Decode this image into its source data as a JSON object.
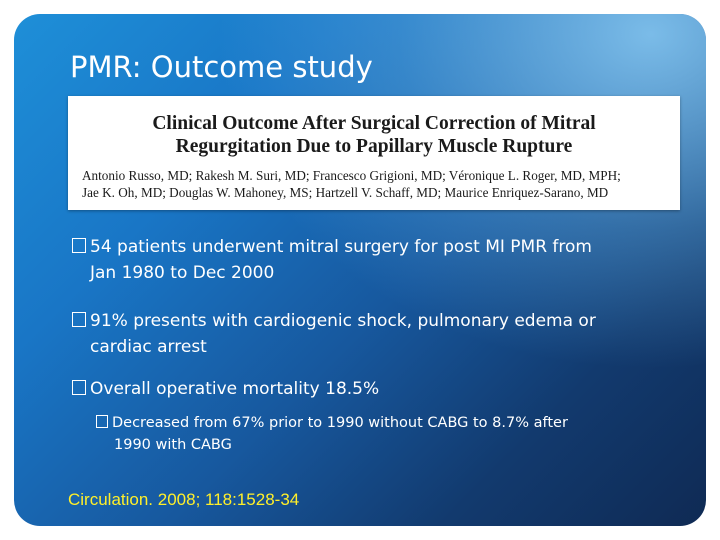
{
  "slide": {
    "title": "PMR: Outcome study",
    "paper": {
      "title_lines": [
        "Clinical Outcome After Surgical Correction of Mitral",
        "Regurgitation Due to Papillary Muscle Rupture"
      ],
      "author_lines": [
        "Antonio Russo, MD; Rakesh M. Suri, MD; Francesco Grigioni, MD; Véronique L. Roger, MD, MPH;",
        "Jae K. Oh, MD; Douglas W. Mahoney, MS; Hartzell V. Schaff, MD; Maurice Enriquez-Sarano, MD"
      ]
    },
    "bullets": [
      {
        "lines": [
          "54 patients underwent mitral surgery for post MI PMR from",
          "Jan 1980 to Dec 2000"
        ]
      },
      {
        "lines": [
          "91% presents with cardiogenic shock, pulmonary edema or",
          "cardiac arrest"
        ]
      },
      {
        "lines": [
          "Overall operative mortality 18.5%"
        ]
      }
    ],
    "sub_bullets": [
      {
        "lines": [
          "Decreased from 67% prior to 1990 without CABG to 8.7% after",
          "1990 with CABG"
        ]
      }
    ],
    "citation": "Circulation. 2008; 118:1528-34",
    "colors": {
      "background_top": "#1e8fd8",
      "background_bottom": "#0f2a54",
      "title_text": "#ffffff",
      "citation_text": "#ffef2a"
    },
    "icons": {
      "bullet": "missing-glyph-box-icon"
    }
  }
}
